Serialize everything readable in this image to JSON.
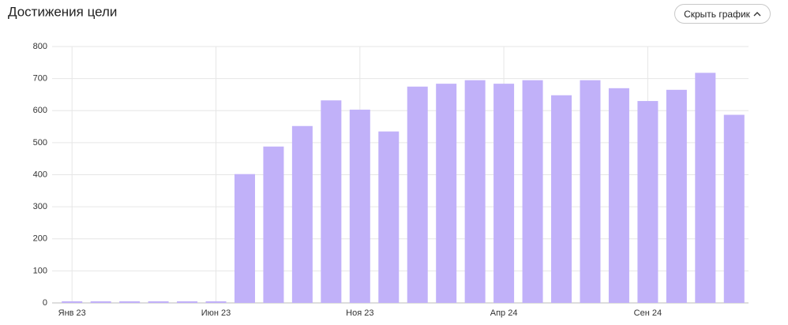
{
  "chart_data": {
    "type": "bar",
    "title": "Достижения цели",
    "categories": [
      "Янв 23",
      null,
      null,
      null,
      null,
      "Июн 23",
      null,
      null,
      null,
      null,
      "Ноя 23",
      null,
      null,
      null,
      null,
      "Апр 24",
      null,
      null,
      null,
      null,
      "Сен 24",
      null,
      null,
      null
    ],
    "values": [
      5,
      5,
      5,
      5,
      5,
      5,
      402,
      488,
      552,
      632,
      603,
      535,
      675,
      684,
      695,
      684,
      695,
      648,
      695,
      670,
      630,
      665,
      718,
      587
    ],
    "color": "#c1b1f9",
    "ylim": [
      0,
      800
    ],
    "yticks": [
      0,
      100,
      200,
      300,
      400,
      500,
      600,
      700,
      800
    ],
    "grid": true
  },
  "button": {
    "label": "Скрыть график"
  }
}
